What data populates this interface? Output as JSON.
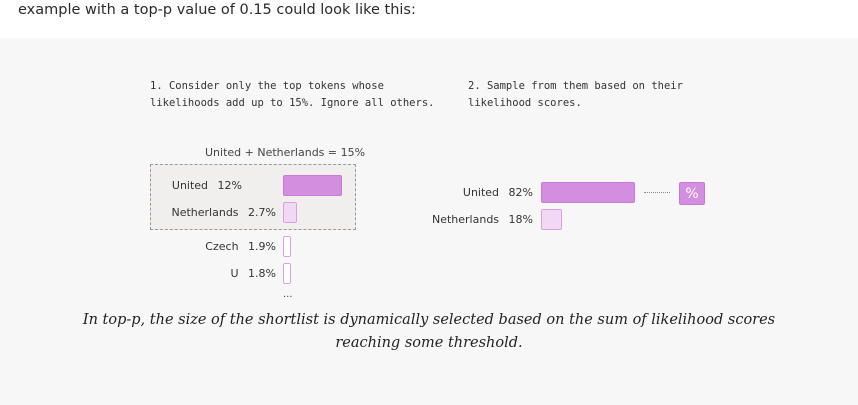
{
  "intro_text": "example with a top-p value of 0.15 could look like this:",
  "step1": {
    "line1": "1. Consider only the top tokens whose",
    "line2": "likelihoods add up to 15%. Ignore all others."
  },
  "step2": {
    "line1": "2. Sample from them based on their",
    "line2": "likelihood scores."
  },
  "sum_label": "United + Netherlands = 15%",
  "left_tokens": [
    {
      "token": "United",
      "pct": "12%",
      "value": 12
    },
    {
      "token": "Netherlands",
      "pct": "2.7%",
      "value": 2.7
    },
    {
      "token": "Czech",
      "pct": "1.9%",
      "value": 1.9
    },
    {
      "token": "U",
      "pct": "1.8%",
      "value": 1.8
    }
  ],
  "more_marker": "...",
  "right_tokens": [
    {
      "token": "United",
      "pct": "82%",
      "value": 82
    },
    {
      "token": "Netherlands",
      "pct": "18%",
      "value": 18
    }
  ],
  "percent_icon": "%",
  "caption": {
    "line1": "In top-p, the size of the shortlist is dynamically selected based on the sum of likelihood scores",
    "line2": "reaching some threshold."
  },
  "colors": {
    "accent": "#d48ee0",
    "accent_light": "#f2d8f5",
    "panel_bg": "#f7f7f7"
  }
}
